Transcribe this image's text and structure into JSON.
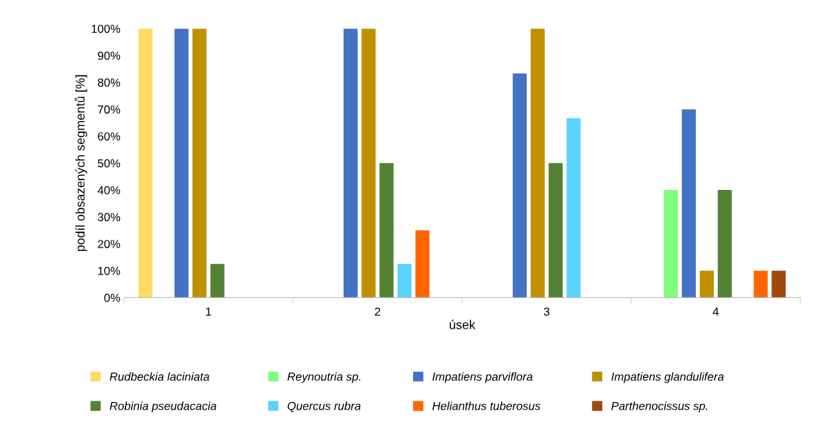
{
  "chart_data": {
    "type": "bar",
    "xlabel": "úsek",
    "ylabel": "podíl obsazených segmentů [%]",
    "categories": [
      "1",
      "2",
      "3",
      "4"
    ],
    "series": [
      {
        "name": "Rudbeckia laciniata",
        "color": "#ffd966",
        "values": [
          100,
          0,
          0,
          0
        ]
      },
      {
        "name": "Reynoutria sp.",
        "color": "#7cff7c",
        "values": [
          0,
          0,
          0,
          40
        ]
      },
      {
        "name": "Impatiens parviflora",
        "color": "#4472c4",
        "values": [
          100,
          100,
          83.3,
          70
        ]
      },
      {
        "name": "Impatiens glandulifera",
        "color": "#bf9000",
        "values": [
          100,
          100,
          100,
          10
        ]
      },
      {
        "name": "Robinia pseudacacia",
        "color": "#548235",
        "values": [
          12.5,
          50,
          50,
          40
        ]
      },
      {
        "name": "Quercus rubra",
        "color": "#5bd3ff",
        "values": [
          0,
          12.5,
          66.7,
          0
        ]
      },
      {
        "name": "Helianthus tuberosus",
        "color": "#ff6600",
        "values": [
          0,
          25,
          0,
          10
        ]
      },
      {
        "name": "Parthenocissus sp.",
        "color": "#9e480e",
        "values": [
          0,
          0,
          0,
          10
        ]
      }
    ],
    "ylim": [
      0,
      100
    ],
    "yticks": [
      {
        "value": 0,
        "label": "0%"
      },
      {
        "value": 10,
        "label": "10%"
      },
      {
        "value": 20,
        "label": "20%"
      },
      {
        "value": 30,
        "label": "30%"
      },
      {
        "value": 40,
        "label": "40%"
      },
      {
        "value": 50,
        "label": "50%"
      },
      {
        "value": 60,
        "label": "60%"
      },
      {
        "value": 70,
        "label": "70%"
      },
      {
        "value": 80,
        "label": "80%"
      },
      {
        "value": 90,
        "label": "90%"
      },
      {
        "value": 100,
        "label": "100%"
      }
    ],
    "grid": false,
    "legend": "bottom"
  }
}
